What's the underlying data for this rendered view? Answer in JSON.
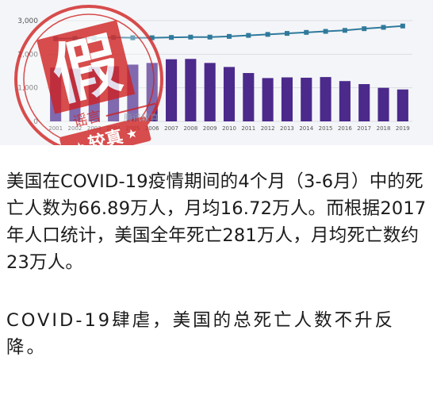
{
  "chart_data": {
    "type": "bar",
    "categories": [
      "2001",
      "2002",
      "2003",
      "2004",
      "2005",
      "2006",
      "2007",
      "2008",
      "2009",
      "2010",
      "2011",
      "2012",
      "2013",
      "2014",
      "2015",
      "2016",
      "2017",
      "2018",
      "2019"
    ],
    "series": [
      {
        "type": "bar",
        "values": [
          1600,
          1570,
          1620,
          1640,
          1690,
          1740,
          1850,
          1860,
          1740,
          1620,
          1440,
          1290,
          1310,
          1300,
          1320,
          1200,
          1110,
          1000,
          950
        ]
      },
      {
        "type": "line",
        "values": [
          2460,
          2470,
          2480,
          2500,
          2490,
          2490,
          2500,
          2510,
          2510,
          2530,
          2560,
          2590,
          2620,
          2650,
          2680,
          2710,
          2760,
          2800,
          2840
        ]
      }
    ],
    "ylim": [
      0,
      3000
    ],
    "yticks": [
      0,
      1000,
      2000,
      3000
    ],
    "ytick_labels": [
      "0",
      "1,000",
      "2,000",
      "3,000"
    ],
    "bar_color": "#4b2a8c",
    "line_color": "#2f7a9c",
    "grid": true
  },
  "stamp": {
    "main_char": "假",
    "small_text": "谣言",
    "bottom_text": "较真",
    "watermark": "腾讯较真",
    "color": "#d32f2f"
  },
  "article": {
    "paragraph1": "美国在COVID-19疫情期间的4个月（3-6月）中的死亡人数为66.89万人，月均16.72万人。而根据2017年人口统计，美国全年死亡281万人，月均死亡数约23万人。",
    "paragraph2": "COVID-19肆虐，美国的总死亡人数不升反降。"
  }
}
